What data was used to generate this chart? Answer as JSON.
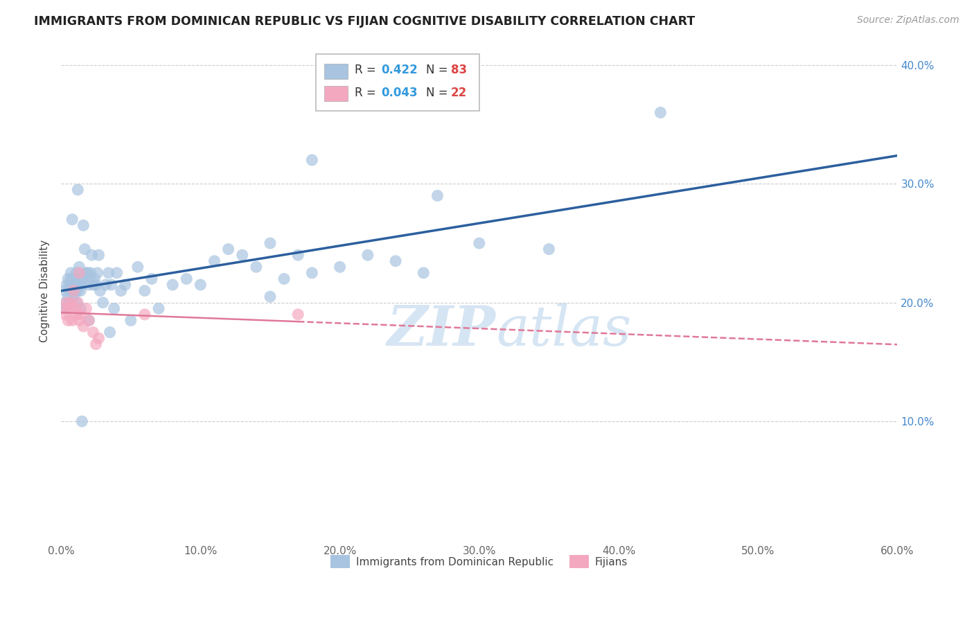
{
  "title": "IMMIGRANTS FROM DOMINICAN REPUBLIC VS FIJIAN COGNITIVE DISABILITY CORRELATION CHART",
  "source": "Source: ZipAtlas.com",
  "ylabel_label": "Cognitive Disability",
  "xmin": 0.0,
  "xmax": 0.6,
  "ymin": 0.0,
  "ymax": 0.42,
  "xticks": [
    0.0,
    0.1,
    0.2,
    0.3,
    0.4,
    0.5,
    0.6
  ],
  "yticks": [
    0.0,
    0.1,
    0.2,
    0.3,
    0.4
  ],
  "xtick_labels": [
    "0.0%",
    "10.0%",
    "20.0%",
    "30.0%",
    "40.0%",
    "50.0%",
    "60.0%"
  ],
  "ytick_labels_right": [
    "",
    "10.0%",
    "20.0%",
    "30.0%",
    "40.0%"
  ],
  "blue_R": 0.422,
  "blue_N": 83,
  "pink_R": 0.043,
  "pink_N": 22,
  "blue_color": "#a8c4e0",
  "pink_color": "#f4a8c0",
  "blue_line_color": "#2c5f9e",
  "pink_line_color": "#e07898",
  "watermark_color": "#ccdff0",
  "legend_label_blue": "Immigrants from Dominican Republic",
  "legend_label_pink": "Fijians",
  "blue_x": [
    0.002,
    0.003,
    0.003,
    0.004,
    0.004,
    0.005,
    0.005,
    0.006,
    0.006,
    0.007,
    0.007,
    0.007,
    0.008,
    0.008,
    0.009,
    0.009,
    0.01,
    0.01,
    0.01,
    0.011,
    0.011,
    0.012,
    0.012,
    0.013,
    0.013,
    0.013,
    0.014,
    0.014,
    0.015,
    0.015,
    0.016,
    0.017,
    0.018,
    0.019,
    0.02,
    0.02,
    0.021,
    0.022,
    0.023,
    0.024,
    0.025,
    0.026,
    0.027,
    0.028,
    0.03,
    0.032,
    0.034,
    0.036,
    0.038,
    0.04,
    0.043,
    0.046,
    0.05,
    0.055,
    0.06,
    0.065,
    0.07,
    0.08,
    0.09,
    0.1,
    0.11,
    0.12,
    0.13,
    0.14,
    0.15,
    0.16,
    0.17,
    0.18,
    0.2,
    0.22,
    0.24,
    0.26,
    0.3,
    0.35,
    0.02,
    0.035,
    0.15,
    0.015,
    0.43,
    0.27,
    0.008,
    0.012,
    0.18
  ],
  "blue_y": [
    0.195,
    0.21,
    0.2,
    0.215,
    0.195,
    0.205,
    0.22,
    0.2,
    0.215,
    0.21,
    0.22,
    0.225,
    0.2,
    0.215,
    0.21,
    0.205,
    0.215,
    0.21,
    0.22,
    0.2,
    0.225,
    0.215,
    0.21,
    0.22,
    0.215,
    0.23,
    0.195,
    0.21,
    0.22,
    0.215,
    0.265,
    0.245,
    0.225,
    0.225,
    0.215,
    0.22,
    0.225,
    0.24,
    0.215,
    0.22,
    0.215,
    0.225,
    0.24,
    0.21,
    0.2,
    0.215,
    0.225,
    0.215,
    0.195,
    0.225,
    0.21,
    0.215,
    0.185,
    0.23,
    0.21,
    0.22,
    0.195,
    0.215,
    0.22,
    0.215,
    0.235,
    0.245,
    0.24,
    0.23,
    0.25,
    0.22,
    0.24,
    0.225,
    0.23,
    0.24,
    0.235,
    0.225,
    0.25,
    0.245,
    0.185,
    0.175,
    0.205,
    0.1,
    0.36,
    0.29,
    0.27,
    0.295,
    0.32
  ],
  "pink_x": [
    0.002,
    0.003,
    0.004,
    0.005,
    0.006,
    0.007,
    0.008,
    0.009,
    0.01,
    0.011,
    0.012,
    0.013,
    0.014,
    0.016,
    0.018,
    0.02,
    0.023,
    0.027,
    0.013,
    0.025,
    0.06,
    0.17
  ],
  "pink_y": [
    0.195,
    0.19,
    0.2,
    0.185,
    0.195,
    0.2,
    0.185,
    0.21,
    0.195,
    0.19,
    0.2,
    0.185,
    0.19,
    0.18,
    0.195,
    0.185,
    0.175,
    0.17,
    0.225,
    0.165,
    0.19,
    0.19
  ]
}
